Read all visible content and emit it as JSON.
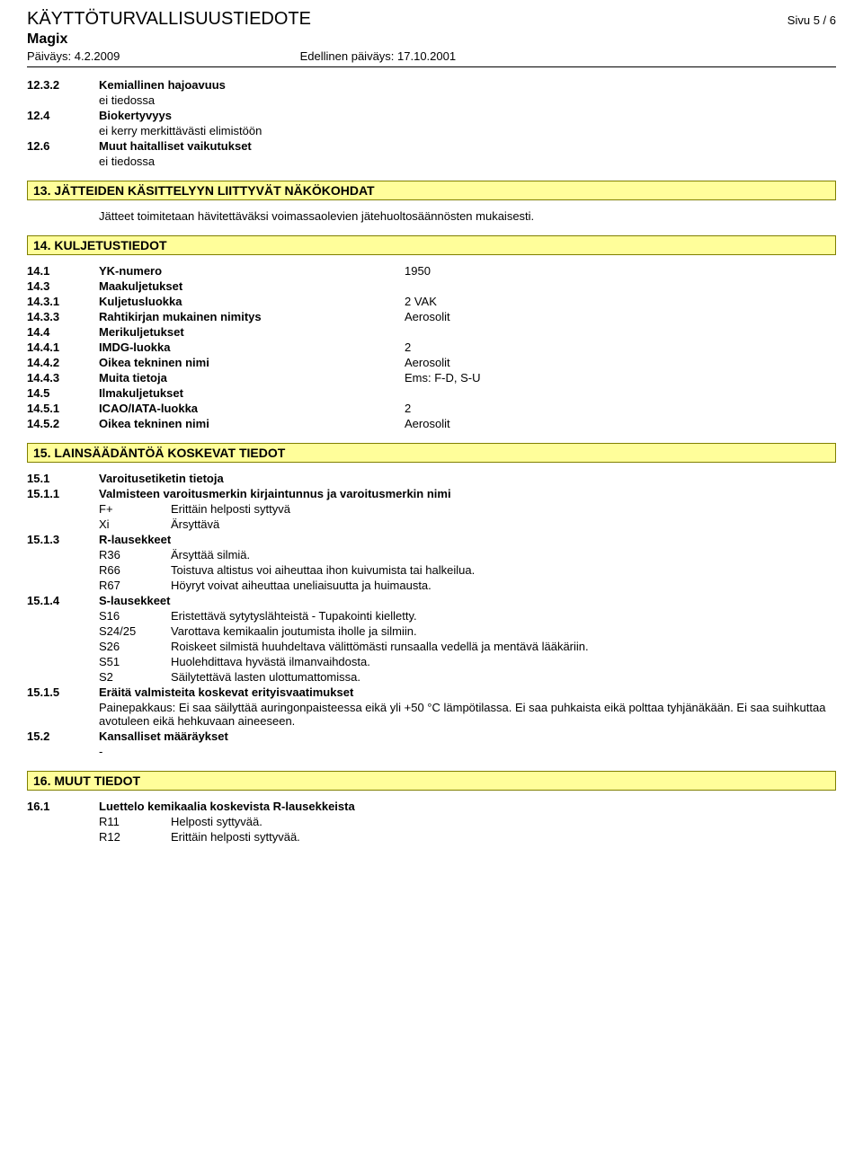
{
  "header": {
    "title": "KÄYTTÖTURVALLISUUSTIEDOTE",
    "page": "Sivu  5 / 6",
    "product": "Magix",
    "date_label": "Päiväys: 4.2.2009",
    "prev_date_label": "Edellinen päiväys: 17.10.2001"
  },
  "sections": {
    "s12": [
      {
        "num": "12.3.2",
        "label": "Kemiallinen hajoavuus",
        "bold": true,
        "sub": "ei tiedossa"
      },
      {
        "num": "12.4",
        "label": "Biokertyvyys",
        "bold": true,
        "sub": "ei kerry merkittävästi elimistöön"
      },
      {
        "num": "12.6",
        "label": "Muut haitalliset vaikutukset",
        "bold": true,
        "sub": "ei tiedossa"
      }
    ],
    "s13_title": "13. JÄTTEIDEN KÄSITTELYYN LIITTYVÄT NÄKÖKOHDAT",
    "s13_text": "Jätteet toimitetaan hävitettäväksi voimassaolevien jätehuoltosäännösten mukaisesti.",
    "s14_title": "14. KULJETUSTIEDOT",
    "s14": [
      {
        "num": "14.1",
        "label": "YK-numero",
        "bold": true,
        "val": "1950"
      },
      {
        "num": "14.3",
        "label": "Maakuljetukset",
        "bold": true,
        "val": ""
      },
      {
        "num": "14.3.1",
        "label": "Kuljetusluokka",
        "bold": true,
        "val": "2    VAK"
      },
      {
        "num": "14.3.3",
        "label": "Rahtikirjan mukainen nimitys",
        "bold": true,
        "val": "Aerosolit"
      },
      {
        "num": "14.4",
        "label": "Merikuljetukset",
        "bold": true,
        "val": ""
      },
      {
        "num": "14.4.1",
        "label": "IMDG-luokka",
        "bold": true,
        "val": "2"
      },
      {
        "num": "14.4.2",
        "label": "Oikea tekninen nimi",
        "bold": true,
        "val": "Aerosolit"
      },
      {
        "num": "14.4.3",
        "label": "Muita tietoja",
        "bold": true,
        "val": "Ems: F-D, S-U"
      },
      {
        "num": "14.5",
        "label": "Ilmakuljetukset",
        "bold": true,
        "val": ""
      },
      {
        "num": "14.5.1",
        "label": "ICAO/IATA-luokka",
        "bold": true,
        "val": "2"
      },
      {
        "num": "14.5.2",
        "label": "Oikea tekninen nimi",
        "bold": true,
        "val": "Aerosolit"
      }
    ],
    "s15_title": "15. LAINSÄÄDÄNTÖÄ KOSKEVAT TIEDOT",
    "s15_1": {
      "num": "15.1",
      "label": "Varoitusetiketin tietoja"
    },
    "s15_1_1": {
      "num": "15.1.1",
      "label": "Valmisteen varoitusmerkin kirjaintunnus ja varoitusmerkin nimi"
    },
    "s15_1_1_rows": [
      {
        "k": "F+",
        "v": "Erittäin helposti syttyvä"
      },
      {
        "k": "Xi",
        "v": "Ärsyttävä"
      }
    ],
    "s15_1_3": {
      "num": "15.1.3",
      "label": "R-lausekkeet"
    },
    "s15_1_3_rows": [
      {
        "k": "R36",
        "v": "Ärsyttää silmiä."
      },
      {
        "k": "R66",
        "v": "Toistuva altistus voi aiheuttaa ihon kuivumista tai halkeilua."
      },
      {
        "k": "R67",
        "v": "Höyryt voivat aiheuttaa uneliaisuutta ja huimausta."
      }
    ],
    "s15_1_4": {
      "num": "15.1.4",
      "label": "S-lausekkeet"
    },
    "s15_1_4_rows": [
      {
        "k": "S16",
        "v": "Eristettävä sytytyslähteistä - Tupakointi kielletty."
      },
      {
        "k": "S24/25",
        "v": "Varottava kemikaalin joutumista iholle ja silmiin."
      },
      {
        "k": "S26",
        "v": "Roiskeet silmistä huuhdeltava välittömästi runsaalla vedellä ja mentävä lääkäriin."
      },
      {
        "k": "S51",
        "v": "Huolehdittava hyvästä ilmanvaihdosta."
      },
      {
        "k": "S2",
        "v": "Säilytettävä lasten ulottumattomissa."
      }
    ],
    "s15_1_5": {
      "num": "15.1.5",
      "label": "Eräitä valmisteita koskevat erityisvaatimukset",
      "text": "Painepakkaus: Ei saa säilyttää auringonpaisteessa eikä yli +50 °C lämpötilassa. Ei saa puhkaista eikä polttaa tyhjänäkään. Ei saa suihkuttaa avotuleen eikä hehkuvaan aineeseen."
    },
    "s15_2": {
      "num": "15.2",
      "label": "Kansalliset määräykset",
      "text": "-"
    },
    "s16_title": "16. MUUT TIEDOT",
    "s16_1": {
      "num": "16.1",
      "label": "Luettelo kemikaalia koskevista R-lausekkeista"
    },
    "s16_1_rows": [
      {
        "k": "R11",
        "v": "Helposti syttyvää."
      },
      {
        "k": "R12",
        "v": "Erittäin helposti syttyvää."
      }
    ]
  }
}
